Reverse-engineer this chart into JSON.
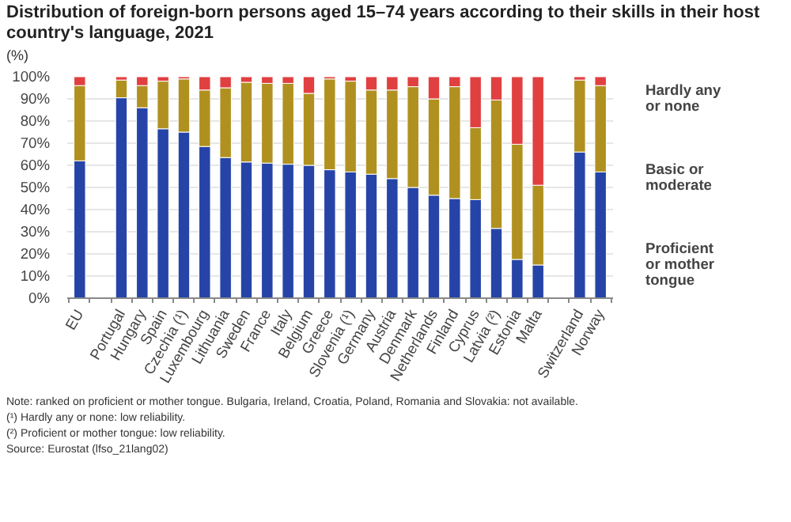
{
  "chart_data": {
    "type": "bar",
    "stacked": true,
    "title": "Distribution of foreign-born persons aged 15–74 years according to their skills in their host country's language, 2021",
    "subtitle": "(%)",
    "categories": [
      "EU",
      null,
      "Portugal",
      "Hungary",
      "Spain",
      "Czechia (¹)",
      "Luxembourg",
      "Lithuania",
      "Sweden",
      "France",
      "Italy",
      "Belgium",
      "Greece",
      "Slovenia (¹)",
      "Germany",
      "Austria",
      "Denmark",
      "Netherlands",
      "Finland",
      "Cyprus",
      "Latvia (²)",
      "Estonia",
      "Malta",
      null,
      "Switzerland",
      "Norway"
    ],
    "series": [
      {
        "name": "Proficient or mother tongue",
        "color": "#2644a7",
        "values": [
          62,
          null,
          90.5,
          86,
          76.5,
          75,
          68.5,
          63.5,
          61.5,
          61,
          60.5,
          60,
          58,
          57,
          56,
          54,
          50,
          46.5,
          45,
          44.5,
          31.5,
          17.5,
          15,
          null,
          66,
          57
        ]
      },
      {
        "name": "Basic or moderate",
        "color": "#b09120",
        "values": [
          34,
          null,
          8,
          10,
          21.5,
          24,
          25.5,
          31.5,
          36,
          36,
          36.5,
          32.5,
          41,
          41,
          38,
          40,
          45.5,
          43.5,
          50.5,
          32.5,
          58,
          52,
          36,
          null,
          32.5,
          39
        ]
      },
      {
        "name": "Hardly any or none",
        "color": "#e04040",
        "values": [
          4,
          null,
          1.5,
          4,
          2,
          1,
          6,
          5,
          2.5,
          3,
          3,
          7.5,
          1,
          2,
          6,
          6,
          4.5,
          10,
          4.5,
          23,
          10.5,
          30.5,
          49,
          null,
          1.5,
          4
        ]
      }
    ],
    "ylim": [
      0,
      100
    ],
    "yticks": [
      {
        "value": 0,
        "label": "0%"
      },
      {
        "value": 10,
        "label": "10%"
      },
      {
        "value": 20,
        "label": "20%"
      },
      {
        "value": 30,
        "label": "30%"
      },
      {
        "value": 40,
        "label": "40%"
      },
      {
        "value": 50,
        "label": "50%"
      },
      {
        "value": 60,
        "label": "60%"
      },
      {
        "value": 70,
        "label": "70%"
      },
      {
        "value": 80,
        "label": "80%"
      },
      {
        "value": 90,
        "label": "90%"
      },
      {
        "value": 100,
        "label": "100%"
      }
    ],
    "grid": "y",
    "legend": "right",
    "annotations": [
      "Note: ranked on proficient or mother tongue. Bulgaria, Ireland, Croatia, Poland, Romania and Slovakia: not available.",
      "(¹) Hardly any or none: low reliability.",
      "(²) Proficient or mother tongue: low reliability.",
      "Source: Eurostat (lfso_21lang02)"
    ]
  }
}
